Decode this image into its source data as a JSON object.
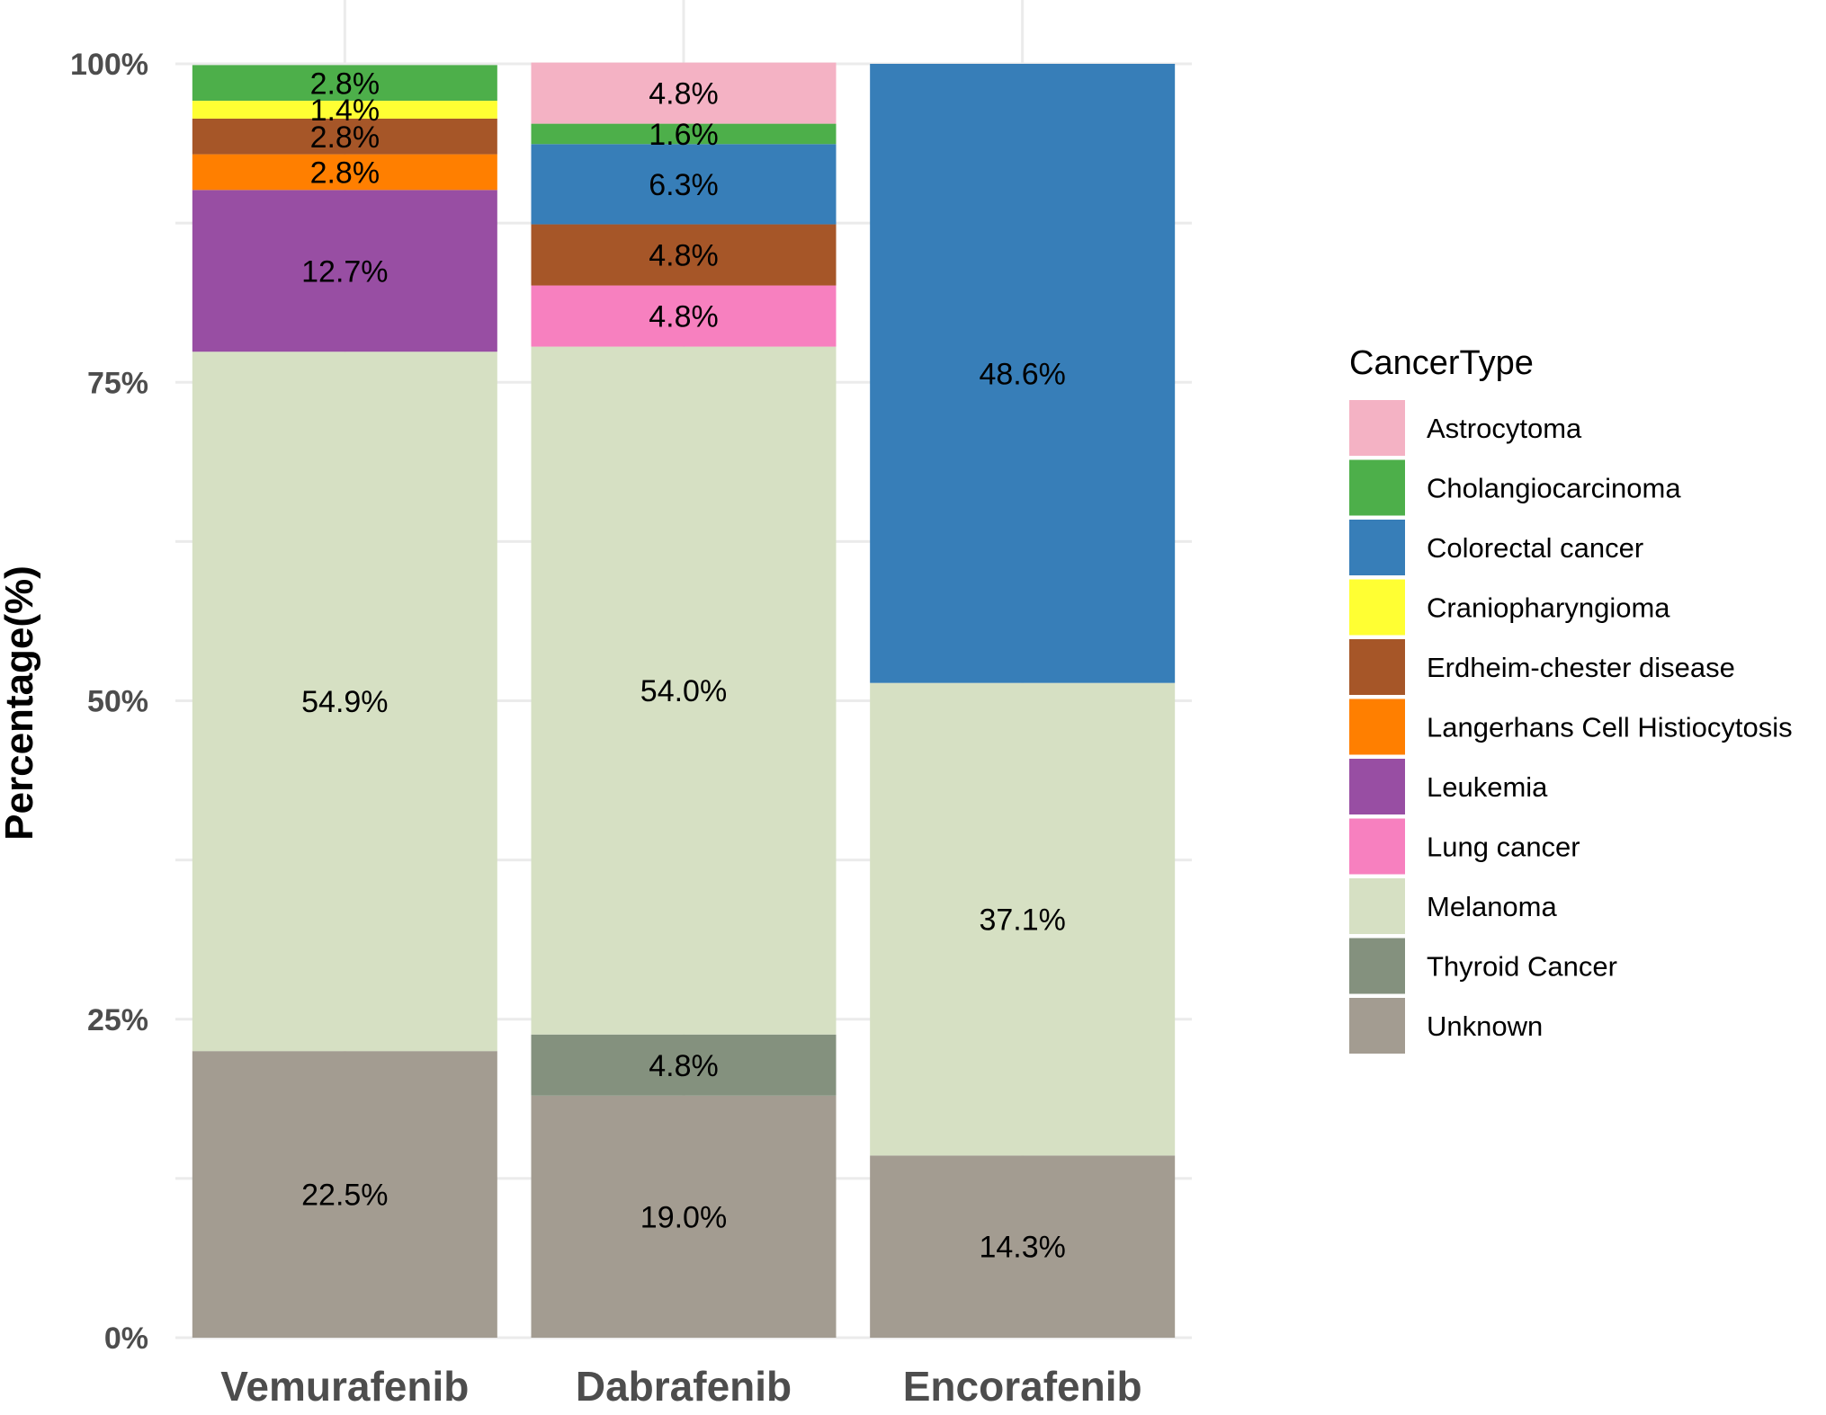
{
  "chart_data": {
    "type": "bar",
    "stacked": true,
    "categories": [
      "Vemurafenib",
      "Dabrafenib",
      "Encorafenib"
    ],
    "ylabel": "Percentage(%)",
    "xlabel": "",
    "ylim": [
      0,
      100
    ],
    "yticks": [
      0,
      25,
      50,
      75,
      100
    ],
    "ytick_labels": [
      "0%",
      "25%",
      "50%",
      "75%",
      "100%"
    ],
    "grid": true,
    "legend": {
      "title": "CancerType",
      "position": "right"
    },
    "series": [
      {
        "name": "Unknown",
        "color": "#A39C91",
        "values": [
          22.5,
          19.0,
          14.3
        ],
        "labels": [
          "22.5%",
          "19.0%",
          "14.3%"
        ]
      },
      {
        "name": "Thyroid Cancer",
        "color": "#84917E",
        "values": [
          0,
          4.8,
          0
        ],
        "labels": [
          "",
          "4.8%",
          ""
        ]
      },
      {
        "name": "Melanoma",
        "color": "#D6E0C3",
        "values": [
          54.9,
          54.0,
          37.1
        ],
        "labels": [
          "54.9%",
          "54.0%",
          "37.1%"
        ]
      },
      {
        "name": "Lung cancer",
        "color": "#F780BF",
        "values": [
          0,
          4.8,
          0
        ],
        "labels": [
          "",
          "4.8%",
          ""
        ]
      },
      {
        "name": "Leukemia",
        "color": "#984EA3",
        "values": [
          12.7,
          0,
          0
        ],
        "labels": [
          "12.7%",
          "",
          ""
        ]
      },
      {
        "name": "Langerhans Cell Histiocytosis",
        "color": "#FF7F00",
        "values": [
          2.8,
          0,
          0
        ],
        "labels": [
          "2.8%",
          "",
          ""
        ]
      },
      {
        "name": "Erdheim-chester disease",
        "color": "#A65628",
        "values": [
          2.8,
          4.8,
          0
        ],
        "labels": [
          "2.8%",
          "4.8%",
          ""
        ]
      },
      {
        "name": "Craniopharyngioma",
        "color": "#FFFF33",
        "values": [
          1.4,
          0,
          0
        ],
        "labels": [
          "1.4%",
          "",
          ""
        ]
      },
      {
        "name": "Colorectal cancer",
        "color": "#377EB8",
        "values": [
          0,
          6.3,
          48.6
        ],
        "labels": [
          "",
          "6.3%",
          "48.6%"
        ]
      },
      {
        "name": "Cholangiocarcinoma",
        "color": "#4DAF4A",
        "values": [
          2.8,
          1.6,
          0
        ],
        "labels": [
          "2.8%",
          "1.6%",
          ""
        ]
      },
      {
        "name": "Astrocytoma",
        "color": "#F4B2C4",
        "values": [
          0,
          4.8,
          0
        ],
        "labels": [
          "",
          "4.8%",
          ""
        ]
      }
    ],
    "legend_order": [
      "Astrocytoma",
      "Cholangiocarcinoma",
      "Colorectal cancer",
      "Craniopharyngioma",
      "Erdheim-chester disease",
      "Langerhans Cell Histiocytosis",
      "Leukemia",
      "Lung cancer",
      "Melanoma",
      "Thyroid Cancer",
      "Unknown"
    ]
  }
}
